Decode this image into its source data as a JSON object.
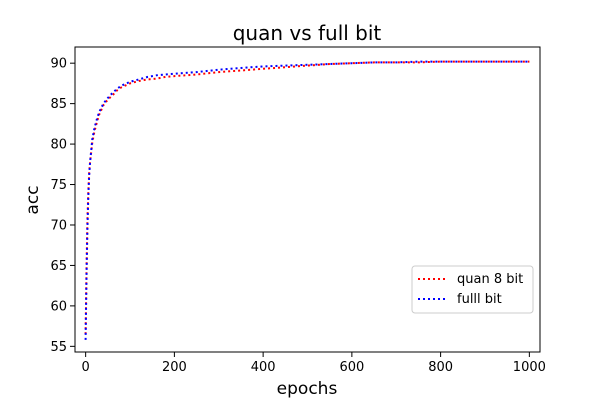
{
  "chart_data": {
    "type": "line",
    "title": "quan vs full bit",
    "xlabel": "epochs",
    "ylabel": "acc",
    "xlim": [
      -24,
      1024
    ],
    "ylim": [
      54.3,
      92.0
    ],
    "x_ticks": [
      0,
      200,
      400,
      600,
      800,
      1000
    ],
    "y_ticks": [
      55,
      60,
      65,
      70,
      75,
      80,
      85,
      90
    ],
    "grid": false,
    "legend_position": "lower-right",
    "series": [
      {
        "name": "quan 8 bit",
        "color": "#ff0000",
        "line_style": "dotted",
        "x": [
          0,
          2,
          4,
          6,
          8,
          10,
          15,
          20,
          25,
          30,
          40,
          50,
          60,
          70,
          80,
          100,
          120,
          140,
          160,
          180,
          200,
          250,
          300,
          350,
          400,
          450,
          500,
          550,
          600,
          650,
          700,
          750,
          800,
          850,
          900,
          950,
          1000
        ],
        "values": [
          56.5,
          64.5,
          70.5,
          74.0,
          76.5,
          77.8,
          80.2,
          81.6,
          82.6,
          83.6,
          84.8,
          85.5,
          86.0,
          86.6,
          87.0,
          87.5,
          87.8,
          88.0,
          88.1,
          88.3,
          88.4,
          88.6,
          88.9,
          89.1,
          89.3,
          89.5,
          89.7,
          89.9,
          90.0,
          90.1,
          90.1,
          90.1,
          90.2,
          90.2,
          90.2,
          90.2,
          90.2
        ]
      },
      {
        "name": "fulll bit",
        "color": "#0000ff",
        "line_style": "dotted",
        "x": [
          0,
          2,
          4,
          6,
          8,
          10,
          15,
          20,
          25,
          30,
          40,
          50,
          60,
          70,
          80,
          100,
          120,
          140,
          160,
          180,
          200,
          250,
          300,
          350,
          400,
          450,
          500,
          550,
          600,
          650,
          700,
          750,
          800,
          850,
          900,
          950,
          1000
        ],
        "values": [
          55.8,
          63.5,
          69.5,
          73.5,
          76.2,
          77.8,
          80.6,
          82.0,
          83.0,
          83.9,
          85.0,
          85.7,
          86.3,
          86.8,
          87.2,
          87.7,
          88.0,
          88.3,
          88.5,
          88.6,
          88.7,
          88.9,
          89.2,
          89.4,
          89.6,
          89.7,
          89.8,
          89.9,
          90.0,
          90.1,
          90.1,
          90.2,
          90.2,
          90.2,
          90.2,
          90.2,
          90.2
        ]
      }
    ]
  }
}
